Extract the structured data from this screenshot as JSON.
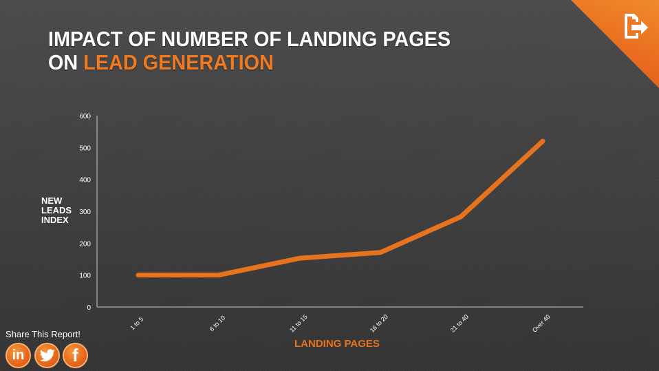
{
  "title": {
    "line1": "IMPACT OF NUMBER OF LANDING PAGES",
    "line2_prefix": "ON ",
    "line2_accent": "LEAD GENERATION"
  },
  "corner_icon": "export-icon",
  "share": {
    "label": "Share This Report!",
    "buttons": [
      {
        "name": "linkedin",
        "glyph": "in"
      },
      {
        "name": "twitter",
        "glyph": "bird"
      },
      {
        "name": "facebook",
        "glyph": "f"
      }
    ]
  },
  "colors": {
    "accent": "#e8731f",
    "background": "#3f3f3f",
    "axis": "#9a9a9a",
    "text": "#ffffff"
  },
  "chart_data": {
    "type": "line",
    "title": "IMPACT OF NUMBER OF LANDING PAGES ON LEAD GENERATION",
    "xlabel": "LANDING PAGES",
    "ylabel": "NEW LEADS INDEX",
    "categories": [
      "1 to 5",
      "6 to 10",
      "11 to 15",
      "16 to 20",
      "21 to 40",
      "Over 40"
    ],
    "series": [
      {
        "name": "New Leads Index",
        "values": [
          100,
          100,
          153,
          171,
          283,
          520
        ],
        "color": "#e8731f"
      }
    ],
    "ylim": [
      0,
      600
    ],
    "yticks": [
      0,
      100,
      200,
      300,
      400,
      500,
      600
    ],
    "grid": false,
    "legend": "none"
  }
}
